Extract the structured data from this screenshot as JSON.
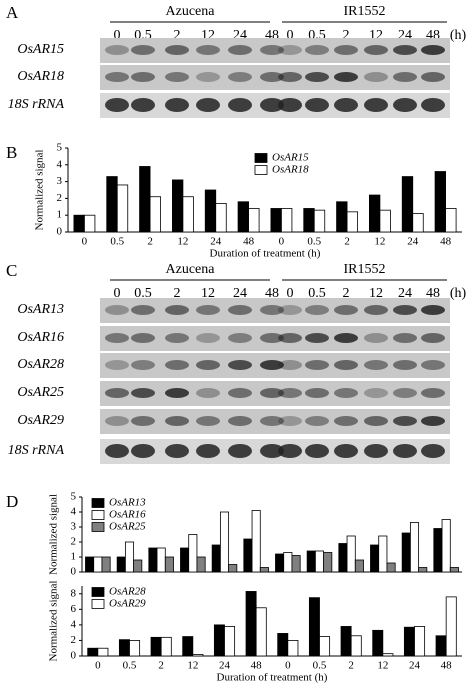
{
  "blots": [
    {
      "panel": "A",
      "groups": [
        "Azucena",
        "IR1552"
      ],
      "times": [
        "0",
        "0.5",
        "2",
        "12",
        "24",
        "48",
        "0",
        "0.5",
        "2",
        "12",
        "24",
        "48"
      ],
      "unit": "(h)",
      "rows": [
        "OsAR15",
        "OsAR18",
        "18S rRNA"
      ]
    },
    {
      "panel": "C",
      "groups": [
        "Azucena",
        "IR1552"
      ],
      "times": [
        "0",
        "0.5",
        "2",
        "12",
        "24",
        "48",
        "0",
        "0.5",
        "2",
        "12",
        "24",
        "48"
      ],
      "unit": "(h)",
      "rows": [
        "OsAR13",
        "OsAR16",
        "OsAR28",
        "OsAR25",
        "OsAR29",
        "18S rRNA"
      ]
    }
  ],
  "chart_data": [
    {
      "type": "bar",
      "panel": "B",
      "y_label": "Normalized signal",
      "x_label": "Duration of treatment (h)",
      "categories": [
        "0",
        "0.5",
        "2",
        "12",
        "24",
        "48",
        "0",
        "0.5",
        "2",
        "12",
        "24",
        "48"
      ],
      "series": [
        {
          "name": "OsAR15",
          "color": "#000000",
          "values": [
            1,
            3.3,
            3.9,
            3.1,
            2.5,
            1.8,
            1.4,
            1.4,
            1.8,
            2.2,
            3.3,
            3.6
          ]
        },
        {
          "name": "OsAR18",
          "color": "#ffffff",
          "values": [
            1,
            2.8,
            2.1,
            2.1,
            1.7,
            1.4,
            1.4,
            1.3,
            1.2,
            1.3,
            1.1,
            1.4
          ]
        }
      ],
      "ylim": [
        0,
        5
      ],
      "yticks": [
        0,
        1,
        2,
        3,
        4,
        5
      ],
      "legend": "center-right"
    },
    {
      "type": "bar",
      "panel": "D",
      "y_label": "Normalized signal",
      "series": [
        {
          "name": "OsAR13",
          "color": "#000000",
          "values": [
            1,
            1,
            1.6,
            1.6,
            1.8,
            2.2,
            1.2,
            1.4,
            1.9,
            1.8,
            2.6,
            2.9
          ]
        },
        {
          "name": "OsAR16",
          "color": "#ffffff",
          "values": [
            1,
            2.0,
            1.6,
            2.5,
            4.0,
            4.1,
            1.3,
            1.4,
            2.4,
            2.4,
            3.3,
            3.5
          ]
        },
        {
          "name": "OsAR25",
          "color": "#808080",
          "values": [
            1,
            0.8,
            1.0,
            1.0,
            0.5,
            0.3,
            1.1,
            1.3,
            0.8,
            0.6,
            0.3,
            0.3
          ]
        }
      ],
      "ylim": [
        0,
        5
      ],
      "yticks": [
        0,
        1,
        2,
        3,
        4,
        5
      ],
      "legend": "top-left"
    },
    {
      "type": "bar",
      "y_label": "Normalized signal",
      "x_label": "Duration of treatment (h)",
      "categories": [
        "0",
        "0.5",
        "2",
        "12",
        "24",
        "48",
        "0",
        "0.5",
        "2",
        "12",
        "24",
        "48"
      ],
      "series": [
        {
          "name": "OsAR28",
          "color": "#000000",
          "values": [
            1,
            2.1,
            2.4,
            2.5,
            4.0,
            8.3,
            2.9,
            7.5,
            3.8,
            3.3,
            3.7,
            2.6
          ]
        },
        {
          "name": "OsAR29",
          "color": "#ffffff",
          "values": [
            1,
            2.0,
            2.4,
            0.2,
            3.8,
            6.2,
            2.0,
            2.5,
            2.6,
            0.3,
            3.8,
            7.6
          ]
        }
      ],
      "ylim": [
        0,
        9
      ],
      "yticks": [
        0,
        2,
        4,
        6,
        8
      ],
      "legend": "top-left"
    }
  ]
}
